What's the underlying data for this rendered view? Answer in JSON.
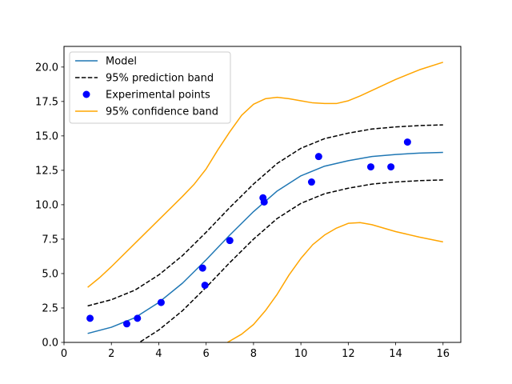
{
  "chart_data": {
    "type": "line",
    "title": "",
    "xlabel": "",
    "ylabel": "",
    "xlim": [
      0,
      16.75
    ],
    "ylim": [
      0,
      21.5
    ],
    "grid": false,
    "legend_placement": "top-left",
    "x_ticks": [
      0,
      2,
      4,
      6,
      8,
      10,
      12,
      14,
      16
    ],
    "x_tick_labels": [
      "0",
      "2",
      "4",
      "6",
      "8",
      "10",
      "12",
      "14",
      "16"
    ],
    "y_ticks": [
      0,
      2.5,
      5,
      7.5,
      10,
      12.5,
      15,
      17.5,
      20
    ],
    "y_tick_labels": [
      "0.0",
      "2.5",
      "5.0",
      "7.5",
      "10.0",
      "12.5",
      "15.0",
      "17.5",
      "20.0"
    ],
    "series": [
      {
        "name": "Model",
        "kind": "line",
        "color": "#1f77b4",
        "style": "solid",
        "x": [
          1,
          2,
          3,
          4,
          5,
          6,
          7,
          8,
          9,
          10,
          11,
          12,
          13,
          14,
          15,
          16
        ],
        "y": [
          0.65,
          1.1,
          1.8,
          2.9,
          4.3,
          6.0,
          7.8,
          9.5,
          11.0,
          12.1,
          12.8,
          13.2,
          13.5,
          13.65,
          13.75,
          13.8
        ]
      },
      {
        "name": "95% prediction band",
        "kind": "line",
        "color": "#000000",
        "style": "dashed",
        "x": [
          1,
          2,
          3,
          4,
          5,
          6,
          7,
          8,
          9,
          10,
          11,
          12,
          13,
          14,
          15,
          16
        ],
        "y": [
          2.65,
          3.1,
          3.8,
          4.9,
          6.3,
          8.0,
          9.8,
          11.5,
          13.0,
          14.1,
          14.8,
          15.2,
          15.5,
          15.65,
          15.75,
          15.8
        ]
      },
      {
        "name": "",
        "kind": "line",
        "color": "#000000",
        "style": "dashed",
        "x": [
          3,
          4,
          5,
          6,
          7,
          8,
          9,
          10,
          11,
          12,
          13,
          14,
          15,
          16
        ],
        "y": [
          -0.2,
          0.9,
          2.3,
          4.0,
          5.8,
          7.5,
          9.0,
          10.1,
          10.8,
          11.2,
          11.5,
          11.65,
          11.75,
          11.8
        ]
      },
      {
        "name": "Experimental points",
        "kind": "scatter",
        "color": "#0000ff",
        "x": [
          1.1,
          2.65,
          3.1,
          4.1,
          5.85,
          5.95,
          7.0,
          8.4,
          8.45,
          10.45,
          10.75,
          12.95,
          13.8,
          14.5
        ],
        "y": [
          1.75,
          1.35,
          1.75,
          2.9,
          5.4,
          4.15,
          7.4,
          10.5,
          10.2,
          11.65,
          13.5,
          12.75,
          12.75,
          14.55
        ]
      },
      {
        "name": "95% confidence band",
        "kind": "line",
        "color": "#ffa500",
        "style": "solid",
        "x": [
          1,
          1.5,
          2,
          3,
          4,
          5,
          5.5,
          6,
          6.5,
          7,
          7.5,
          8,
          8.5,
          9,
          9.5,
          10,
          10.5,
          11,
          11.5,
          12,
          12.5,
          13,
          14,
          15,
          16
        ],
        "y": [
          4.0,
          4.7,
          5.5,
          7.2,
          8.9,
          10.6,
          11.5,
          12.6,
          14.0,
          15.3,
          16.5,
          17.3,
          17.7,
          17.8,
          17.7,
          17.55,
          17.4,
          17.35,
          17.35,
          17.55,
          17.9,
          18.3,
          19.1,
          19.8,
          20.35
        ]
      },
      {
        "name": "",
        "kind": "line",
        "color": "#ffa500",
        "style": "solid",
        "x": [
          6.9,
          7.5,
          8,
          8.5,
          9,
          9.5,
          10,
          10.5,
          11,
          11.5,
          12,
          12.5,
          13,
          14,
          15,
          16
        ],
        "y": [
          0,
          0.6,
          1.3,
          2.3,
          3.5,
          4.9,
          6.1,
          7.1,
          7.8,
          8.3,
          8.65,
          8.7,
          8.55,
          8.05,
          7.65,
          7.3
        ]
      }
    ],
    "legend": [
      {
        "label": "Model",
        "marker": "line",
        "color": "#1f77b4",
        "style": "solid"
      },
      {
        "label": "95% prediction band",
        "marker": "line",
        "color": "#000000",
        "style": "dashed"
      },
      {
        "label": "Experimental points",
        "marker": "dot",
        "color": "#0000ff",
        "style": "none"
      },
      {
        "label": "95% confidence band",
        "marker": "line",
        "color": "#ffa500",
        "style": "solid"
      }
    ]
  }
}
